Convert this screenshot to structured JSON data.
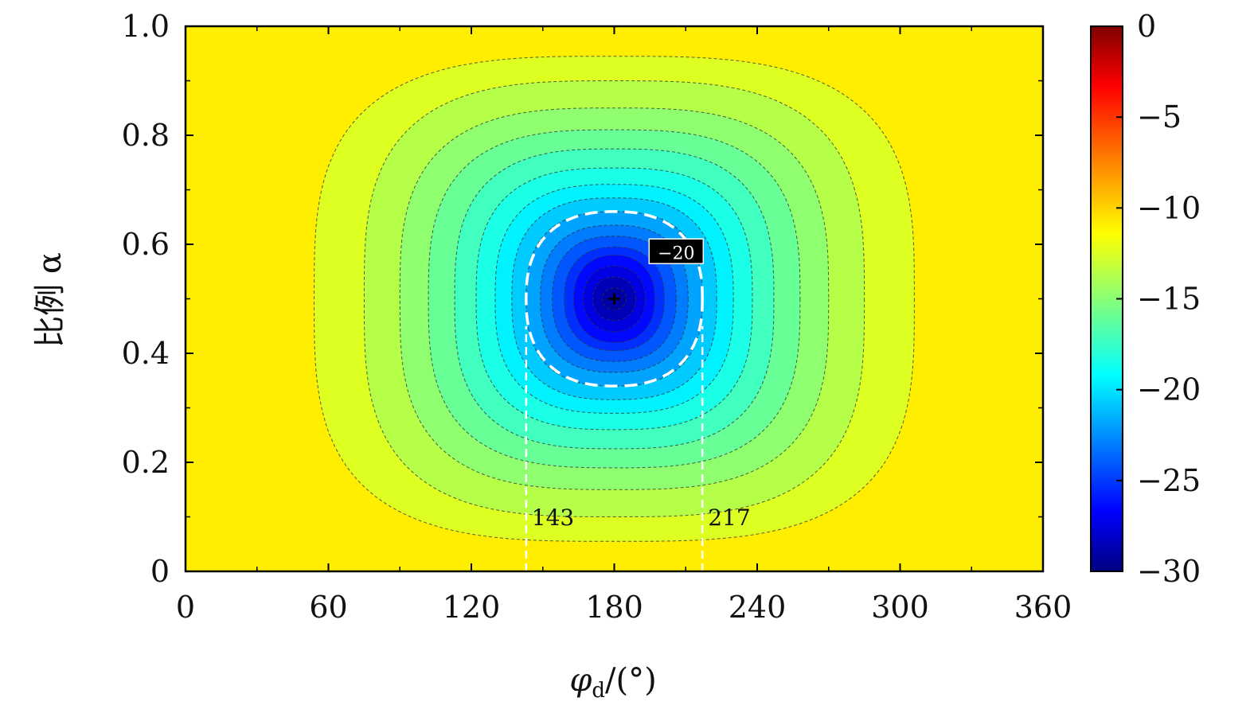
{
  "chart_data": {
    "type": "heatmap",
    "title": "",
    "xlabel": "φd/(°)",
    "ylabel": "比例 α",
    "xlim": [
      0,
      360
    ],
    "ylim": [
      0,
      1
    ],
    "xticks": [
      0,
      60,
      120,
      180,
      240,
      300,
      360
    ],
    "xtick_labels": [
      "0",
      "60",
      "120",
      "180",
      "240",
      "300",
      "360"
    ],
    "yticks": [
      0,
      0.2,
      0.4,
      0.6,
      0.8,
      1.0
    ],
    "ytick_labels": [
      "0",
      "0.2",
      "0.4",
      "0.6",
      "0.8",
      "1.0"
    ],
    "colorbar": {
      "range": [
        -30,
        0
      ],
      "ticks": [
        0,
        -5,
        -10,
        -15,
        -20,
        -25,
        -30
      ],
      "tick_labels": [
        "0",
        "−5",
        "−10",
        "−15",
        "−20",
        "−25",
        "−30"
      ],
      "colormap": "jet"
    },
    "background_value": -10.5,
    "minimum": {
      "x": 180,
      "y": 0.5,
      "value": -30
    },
    "highlight_contour": {
      "value": -20,
      "label": "−20",
      "x_range": [
        143,
        217
      ],
      "y_range": [
        0.34,
        0.66
      ]
    },
    "vertical_markers": [
      {
        "x": 143,
        "label": "143"
      },
      {
        "x": 217,
        "label": "217"
      }
    ],
    "contour_extents": [
      {
        "x_range": [
          54,
          306
        ],
        "y_range": [
          0.055,
          0.945
        ]
      },
      {
        "x_range": [
          75,
          285
        ],
        "y_range": [
          0.1,
          0.9
        ]
      },
      {
        "x_range": [
          90,
          270
        ],
        "y_range": [
          0.15,
          0.85
        ]
      },
      {
        "x_range": [
          102,
          258
        ],
        "y_range": [
          0.19,
          0.81
        ]
      },
      {
        "x_range": [
          113,
          247
        ],
        "y_range": [
          0.225,
          0.775
        ]
      },
      {
        "x_range": [
          122,
          238
        ],
        "y_range": [
          0.26,
          0.74
        ]
      },
      {
        "x_range": [
          130,
          230
        ],
        "y_range": [
          0.29,
          0.71
        ]
      },
      {
        "x_range": [
          137,
          223
        ],
        "y_range": [
          0.315,
          0.685
        ]
      },
      {
        "x_range": [
          143,
          217
        ],
        "y_range": [
          0.34,
          0.66
        ]
      },
      {
        "x_range": [
          149,
          211
        ],
        "y_range": [
          0.365,
          0.635
        ]
      },
      {
        "x_range": [
          154,
          206
        ],
        "y_range": [
          0.385,
          0.615
        ]
      },
      {
        "x_range": [
          159,
          201
        ],
        "y_range": [
          0.405,
          0.595
        ]
      },
      {
        "x_range": [
          163,
          197
        ],
        "y_range": [
          0.42,
          0.58
        ]
      },
      {
        "x_range": [
          167,
          193
        ],
        "y_range": [
          0.44,
          0.56
        ]
      },
      {
        "x_range": [
          171,
          189
        ],
        "y_range": [
          0.46,
          0.54
        ]
      },
      {
        "x_range": [
          175,
          185
        ],
        "y_range": [
          0.48,
          0.52
        ]
      }
    ]
  }
}
